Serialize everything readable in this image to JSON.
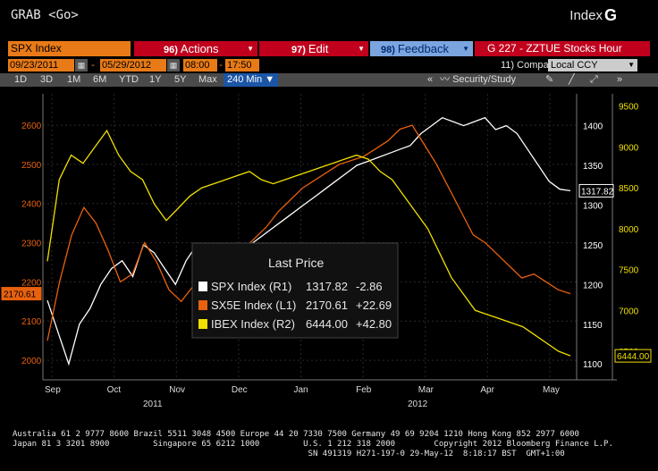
{
  "header": {
    "command": "GRAB <Go>",
    "market_key": "Index",
    "function_key": "G"
  },
  "menu": {
    "security": "SPX Index",
    "actions_num": "96)",
    "actions_label": "Actions",
    "edit_num": "97)",
    "edit_label": "Edit",
    "feedback_num": "98)",
    "feedback_label": "Feedback",
    "chart_name": "G 227 - ZZTUE Stocks Hour"
  },
  "dates": {
    "start": "09/23/2011",
    "end": "05/29/2012",
    "time_start": "08:00",
    "time_end": "17:50",
    "compare_label": "11) Compare",
    "currency": "Local CCY"
  },
  "ranges": {
    "items": [
      "1D",
      "3D",
      "1M",
      "6M",
      "YTD",
      "1Y",
      "5Y",
      "Max"
    ],
    "selected": "240 Min"
  },
  "toolbar": {
    "security_study": "Security/Study"
  },
  "legend": {
    "title": "Last Price",
    "rows": [
      {
        "name": "SPX Index",
        "axis": "(R1)",
        "price": "1317.82",
        "change": "-2.86",
        "color": "#ffffff"
      },
      {
        "name": "SX5E Index",
        "axis": "(L1)",
        "price": "2170.61",
        "change": "+22.69",
        "color": "#e8610e"
      },
      {
        "name": "IBEX Index",
        "axis": "(R2)",
        "price": "6444.00",
        "change": "+42.80",
        "color": "#f0e000"
      }
    ]
  },
  "chart_data": {
    "type": "line",
    "x_labels": [
      "Sep",
      "Oct",
      "Nov",
      "Dec",
      "Jan",
      "Feb",
      "Mar",
      "Apr",
      "May"
    ],
    "years": [
      "2011",
      "2012"
    ],
    "axes": {
      "left": {
        "ticks": [
          2000,
          2100,
          2200,
          2300,
          2400,
          2500,
          2600
        ],
        "range": [
          1950,
          2680
        ],
        "color": "#e8610e"
      },
      "right1": {
        "ticks": [
          1100,
          1150,
          1200,
          1250,
          1300,
          1350,
          1400
        ],
        "range": [
          1080,
          1440
        ],
        "color": "#ffffff"
      },
      "right2": {
        "ticks": [
          6500,
          7000,
          7500,
          8000,
          8500,
          9000,
          9500
        ],
        "range": [
          6150,
          9650
        ],
        "color": "#f0e000"
      }
    },
    "series": [
      {
        "name": "SPX Index",
        "axis": "right1",
        "color": "#ffffff",
        "last_label": "1317.82",
        "values": [
          1180,
          1140,
          1100,
          1150,
          1170,
          1200,
          1220,
          1230,
          1210,
          1250,
          1240,
          1220,
          1200,
          1230,
          1250,
          1240,
          1220,
          1230,
          1240,
          1250,
          1260,
          1270,
          1280,
          1290,
          1300,
          1310,
          1320,
          1330,
          1340,
          1350,
          1355,
          1360,
          1365,
          1370,
          1375,
          1390,
          1400,
          1410,
          1405,
          1400,
          1405,
          1410,
          1395,
          1400,
          1390,
          1370,
          1350,
          1330,
          1320,
          1318
        ]
      },
      {
        "name": "SX5E Index",
        "axis": "left",
        "color": "#e8610e",
        "last_label": "2170.61",
        "values": [
          2050,
          2200,
          2320,
          2390,
          2350,
          2280,
          2200,
          2220,
          2300,
          2250,
          2180,
          2150,
          2190,
          2230,
          2250,
          2260,
          2280,
          2310,
          2340,
          2380,
          2410,
          2440,
          2460,
          2480,
          2500,
          2510,
          2520,
          2540,
          2560,
          2590,
          2600,
          2550,
          2500,
          2440,
          2380,
          2320,
          2300,
          2270,
          2240,
          2210,
          2220,
          2200,
          2180,
          2170
        ]
      },
      {
        "name": "IBEX Index",
        "axis": "right2",
        "color": "#f0e000",
        "last_label": "6444.00",
        "values": [
          7600,
          8600,
          8900,
          8800,
          9000,
          9200,
          8900,
          8700,
          8600,
          8300,
          8100,
          8250,
          8400,
          8500,
          8550,
          8600,
          8650,
          8700,
          8600,
          8550,
          8600,
          8650,
          8700,
          8750,
          8800,
          8850,
          8900,
          8850,
          8700,
          8600,
          8400,
          8200,
          8000,
          7700,
          7400,
          7200,
          7000,
          6950,
          6900,
          6850,
          6800,
          6700,
          6600,
          6500,
          6444
        ]
      }
    ]
  },
  "footer": {
    "line1": "Australia 61 2 9777 8600 Brazil 5511 3048 4500 Europe 44 20 7330 7500 Germany 49 69 9204 1210 Hong Kong 852 2977 6000",
    "line2": "Japan 81 3 3201 8900         Singapore 65 6212 1000         U.S. 1 212 318 2000        Copyright 2012 Bloomberg Finance L.P.",
    "line3": "                                                             SN 491319 H271-197-0 29-May-12  8:18:17 BST  GMT+1:00"
  }
}
